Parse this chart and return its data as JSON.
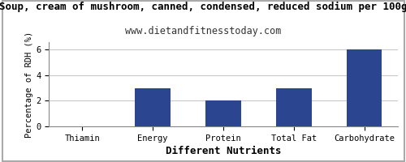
{
  "title": "Soup, cream of mushroom, canned, condensed, reduced sodium per 100g",
  "subtitle": "www.dietandfitnesstoday.com",
  "xlabel": "Different Nutrients",
  "ylabel": "Percentage of RDH (%)",
  "categories": [
    "Thiamin",
    "Energy",
    "Protein",
    "Total Fat",
    "Carbohydrate"
  ],
  "values": [
    0,
    3,
    2,
    3,
    6
  ],
  "bar_color": "#2b4590",
  "ylim": [
    0,
    6.6
  ],
  "yticks": [
    0,
    2,
    4,
    6
  ],
  "title_fontsize": 9,
  "subtitle_fontsize": 8.5,
  "xlabel_fontsize": 9,
  "ylabel_fontsize": 7.5,
  "tick_fontsize": 7.5,
  "background_color": "#ffffff",
  "grid_color": "#c8c8c8",
  "border_color": "#aaaaaa"
}
